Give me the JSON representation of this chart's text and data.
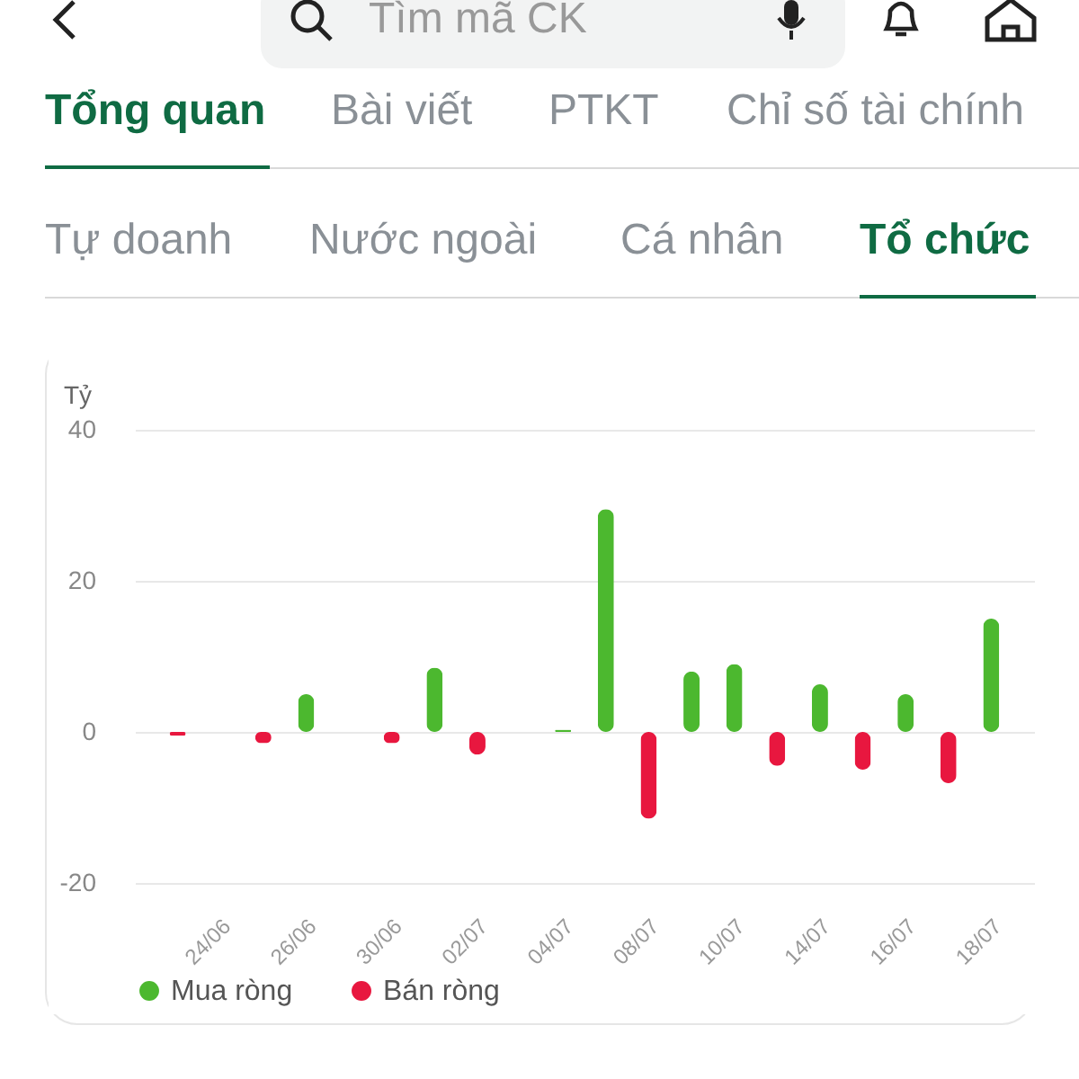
{
  "chart_data": {
    "type": "bar",
    "ylabel": "Tỷ",
    "categories": [
      null,
      "24/06",
      null,
      "26/06",
      null,
      "30/06",
      null,
      "02/07",
      null,
      "04/07",
      null,
      "08/07",
      null,
      "10/07",
      null,
      "14/07",
      null,
      "16/07",
      null,
      "18/07"
    ],
    "series": [
      {
        "name": "Mua ròng",
        "color": "#4cb82f",
        "values": [
          null,
          0,
          null,
          5,
          0,
          null,
          8.5,
          null,
          0,
          0.3,
          29.5,
          null,
          8,
          9,
          null,
          6.3,
          null,
          5,
          null,
          15
        ]
      },
      {
        "name": "Bán ròng",
        "color": "#e8173f",
        "values": [
          -0.5,
          null,
          -1.5,
          null,
          null,
          -1.5,
          null,
          -3,
          null,
          null,
          null,
          -11.5,
          null,
          null,
          -4.5,
          null,
          -5,
          null,
          -6.8,
          null
        ]
      }
    ],
    "ylim": [
      -20,
      40
    ],
    "yticks": [
      -20,
      0,
      20,
      40
    ],
    "grid": "y",
    "legend": "bottom",
    "annotations": [
      "Tìm mã CK",
      "Tổng quan",
      "Bài viết",
      "PTKT",
      "Chỉ số tài chính",
      "Tự doanh",
      "Nước ngoài",
      "Cá nhân",
      "Tổ chức"
    ]
  }
}
